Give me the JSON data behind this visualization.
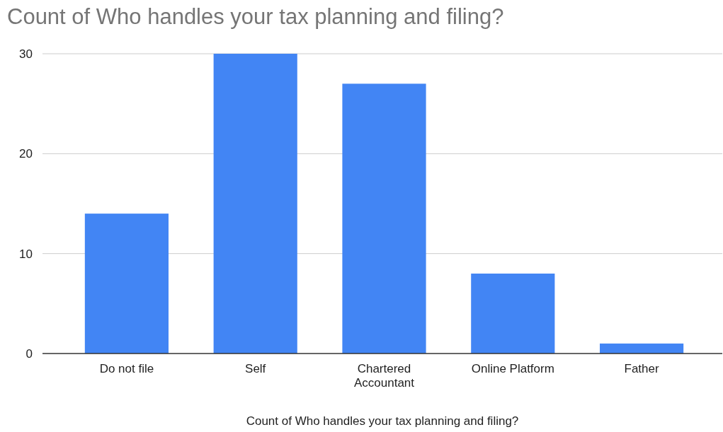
{
  "chart_data": {
    "type": "bar",
    "title": "Count of Who handles your tax planning and filing?",
    "xlabel": "Count of Who handles your tax planning and filing?",
    "categories": [
      "Do not file",
      "Self",
      "Chartered Accountant",
      "Online Platform",
      "Father"
    ],
    "values": [
      14,
      30,
      27,
      8,
      1
    ],
    "color": "#4285f4",
    "ylim": [
      0,
      30
    ],
    "yticks": [
      0,
      10,
      20,
      30
    ],
    "grid": "y"
  }
}
